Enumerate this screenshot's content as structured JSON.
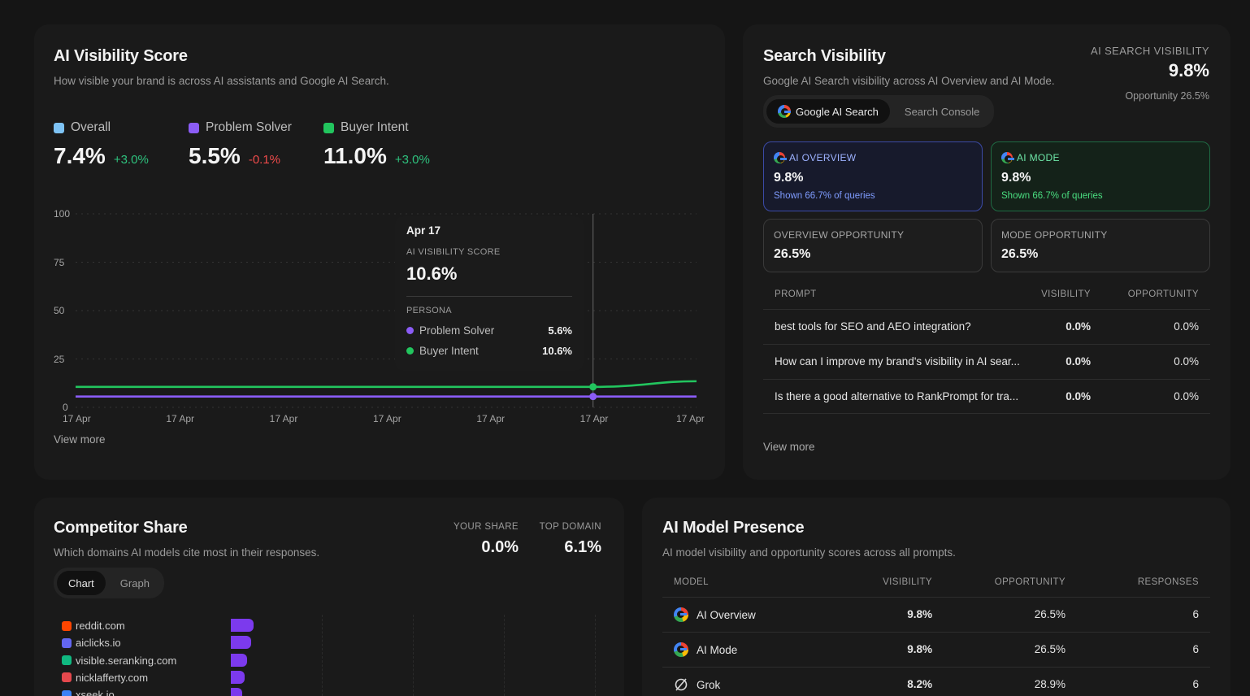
{
  "visibility": {
    "title": "AI Visibility Score",
    "subtitle": "How visible your brand is across AI assistants and Google AI Search.",
    "legend": [
      {
        "label": "Overall",
        "value": "7.4%",
        "delta": "+3.0%",
        "color": "#7ec3f5",
        "trend": "positive"
      },
      {
        "label": "Problem Solver",
        "value": "5.5%",
        "delta": "-0.1%",
        "color": "#8b5cf6",
        "trend": "negative"
      },
      {
        "label": "Buyer Intent",
        "value": "11.0%",
        "delta": "+3.0%",
        "color": "#22c55e",
        "trend": "positive"
      }
    ],
    "view_more": "View more",
    "tooltip": {
      "date": "Apr 17",
      "score_label": "AI VISIBILITY SCORE",
      "score": "10.6%",
      "persona_label": "PERSONA",
      "rows": [
        {
          "label": "Problem Solver",
          "value": "5.6%",
          "color": "#8b5cf6"
        },
        {
          "label": "Buyer Intent",
          "value": "10.6%",
          "color": "#22c55e"
        }
      ]
    }
  },
  "chart_data": {
    "type": "line",
    "title": "",
    "xlabel": "",
    "ylabel": "",
    "ylim": [
      0,
      100
    ],
    "yticks": [
      "100",
      "75",
      "50",
      "25",
      "0"
    ],
    "categories": [
      "17 Apr",
      "17 Apr",
      "17 Apr",
      "17 Apr",
      "17 Apr",
      "17 Apr",
      "17 Apr"
    ],
    "grid": true,
    "series": [
      {
        "name": "Buyer Intent",
        "color": "#22c55e",
        "values": [
          10.6,
          10.6,
          10.6,
          10.6,
          10.6,
          10.6,
          13.5
        ]
      },
      {
        "name": "Problem Solver",
        "color": "#8b5cf6",
        "values": [
          5.6,
          5.6,
          5.6,
          5.6,
          5.6,
          5.6,
          5.6
        ]
      }
    ],
    "highlight_index": 5
  },
  "search": {
    "title": "Search Visibility",
    "subtitle": "Google AI Search visibility across AI Overview and AI Mode.",
    "kpi_label": "AI SEARCH VISIBILITY",
    "kpi_value": "9.8%",
    "kpi_sub": "Opportunity 26.5%",
    "tabs": [
      {
        "label": "Google AI Search",
        "active": true
      },
      {
        "label": "Search Console",
        "active": false
      }
    ],
    "tiles": {
      "overview": {
        "label": "AI OVERVIEW",
        "value": "9.8%",
        "sub": "Shown 66.7% of queries"
      },
      "mode": {
        "label": "AI MODE",
        "value": "9.8%",
        "sub": "Shown 66.7% of queries"
      },
      "overview_opp": {
        "label": "OVERVIEW OPPORTUNITY",
        "value": "26.5%"
      },
      "mode_opp": {
        "label": "MODE OPPORTUNITY",
        "value": "26.5%"
      }
    },
    "table": {
      "headers": {
        "prompt": "PROMPT",
        "visibility": "VISIBILITY",
        "opportunity": "OPPORTUNITY"
      },
      "rows": [
        {
          "prompt": "best tools for SEO and AEO integration?",
          "visibility": "0.0%",
          "opportunity": "0.0%"
        },
        {
          "prompt": "How can I improve my brand's visibility in AI sear...",
          "visibility": "0.0%",
          "opportunity": "0.0%"
        },
        {
          "prompt": "Is there a good alternative to RankPrompt for tra...",
          "visibility": "0.0%",
          "opportunity": "0.0%"
        }
      ]
    },
    "view_more": "View more"
  },
  "competitor": {
    "title": "Competitor Share",
    "subtitle": "Which domains AI models cite most in their responses.",
    "your_share_label": "YOUR SHARE",
    "your_share": "0.0%",
    "top_domain_label": "TOP DOMAIN",
    "top_domain": "6.1%",
    "tabs": [
      {
        "label": "Chart",
        "active": true
      },
      {
        "label": "Graph",
        "active": false
      }
    ],
    "domains": [
      {
        "name": "reddit.com",
        "icon": "reddit-icon",
        "color": "#ff4500",
        "share": 6.1
      },
      {
        "name": "aiclicks.io",
        "icon": "aiclicks-icon",
        "color": "#6366f1",
        "share": 5.5
      },
      {
        "name": "visible.seranking.com",
        "icon": "seranking-icon",
        "color": "#10b981",
        "share": 4.3
      },
      {
        "name": "nicklafferty.com",
        "icon": "nicklafferty-icon",
        "color": "#e5484d",
        "share": 3.7
      },
      {
        "name": "xseek.io",
        "icon": "xseek-icon",
        "color": "#3b82f6",
        "share": 3.0
      }
    ]
  },
  "models": {
    "title": "AI Model Presence",
    "subtitle": "AI model visibility and opportunity scores across all prompts.",
    "headers": {
      "model": "MODEL",
      "visibility": "VISIBILITY",
      "opportunity": "OPPORTUNITY",
      "responses": "RESPONSES"
    },
    "rows": [
      {
        "model": "AI Overview",
        "icon": "google-icon",
        "visibility": "9.8%",
        "opportunity": "26.5%",
        "responses": "6"
      },
      {
        "model": "AI Mode",
        "icon": "google-icon",
        "visibility": "9.8%",
        "opportunity": "26.5%",
        "responses": "6"
      },
      {
        "model": "Grok",
        "icon": "grok-icon",
        "visibility": "8.2%",
        "opportunity": "28.9%",
        "responses": "6"
      }
    ]
  }
}
